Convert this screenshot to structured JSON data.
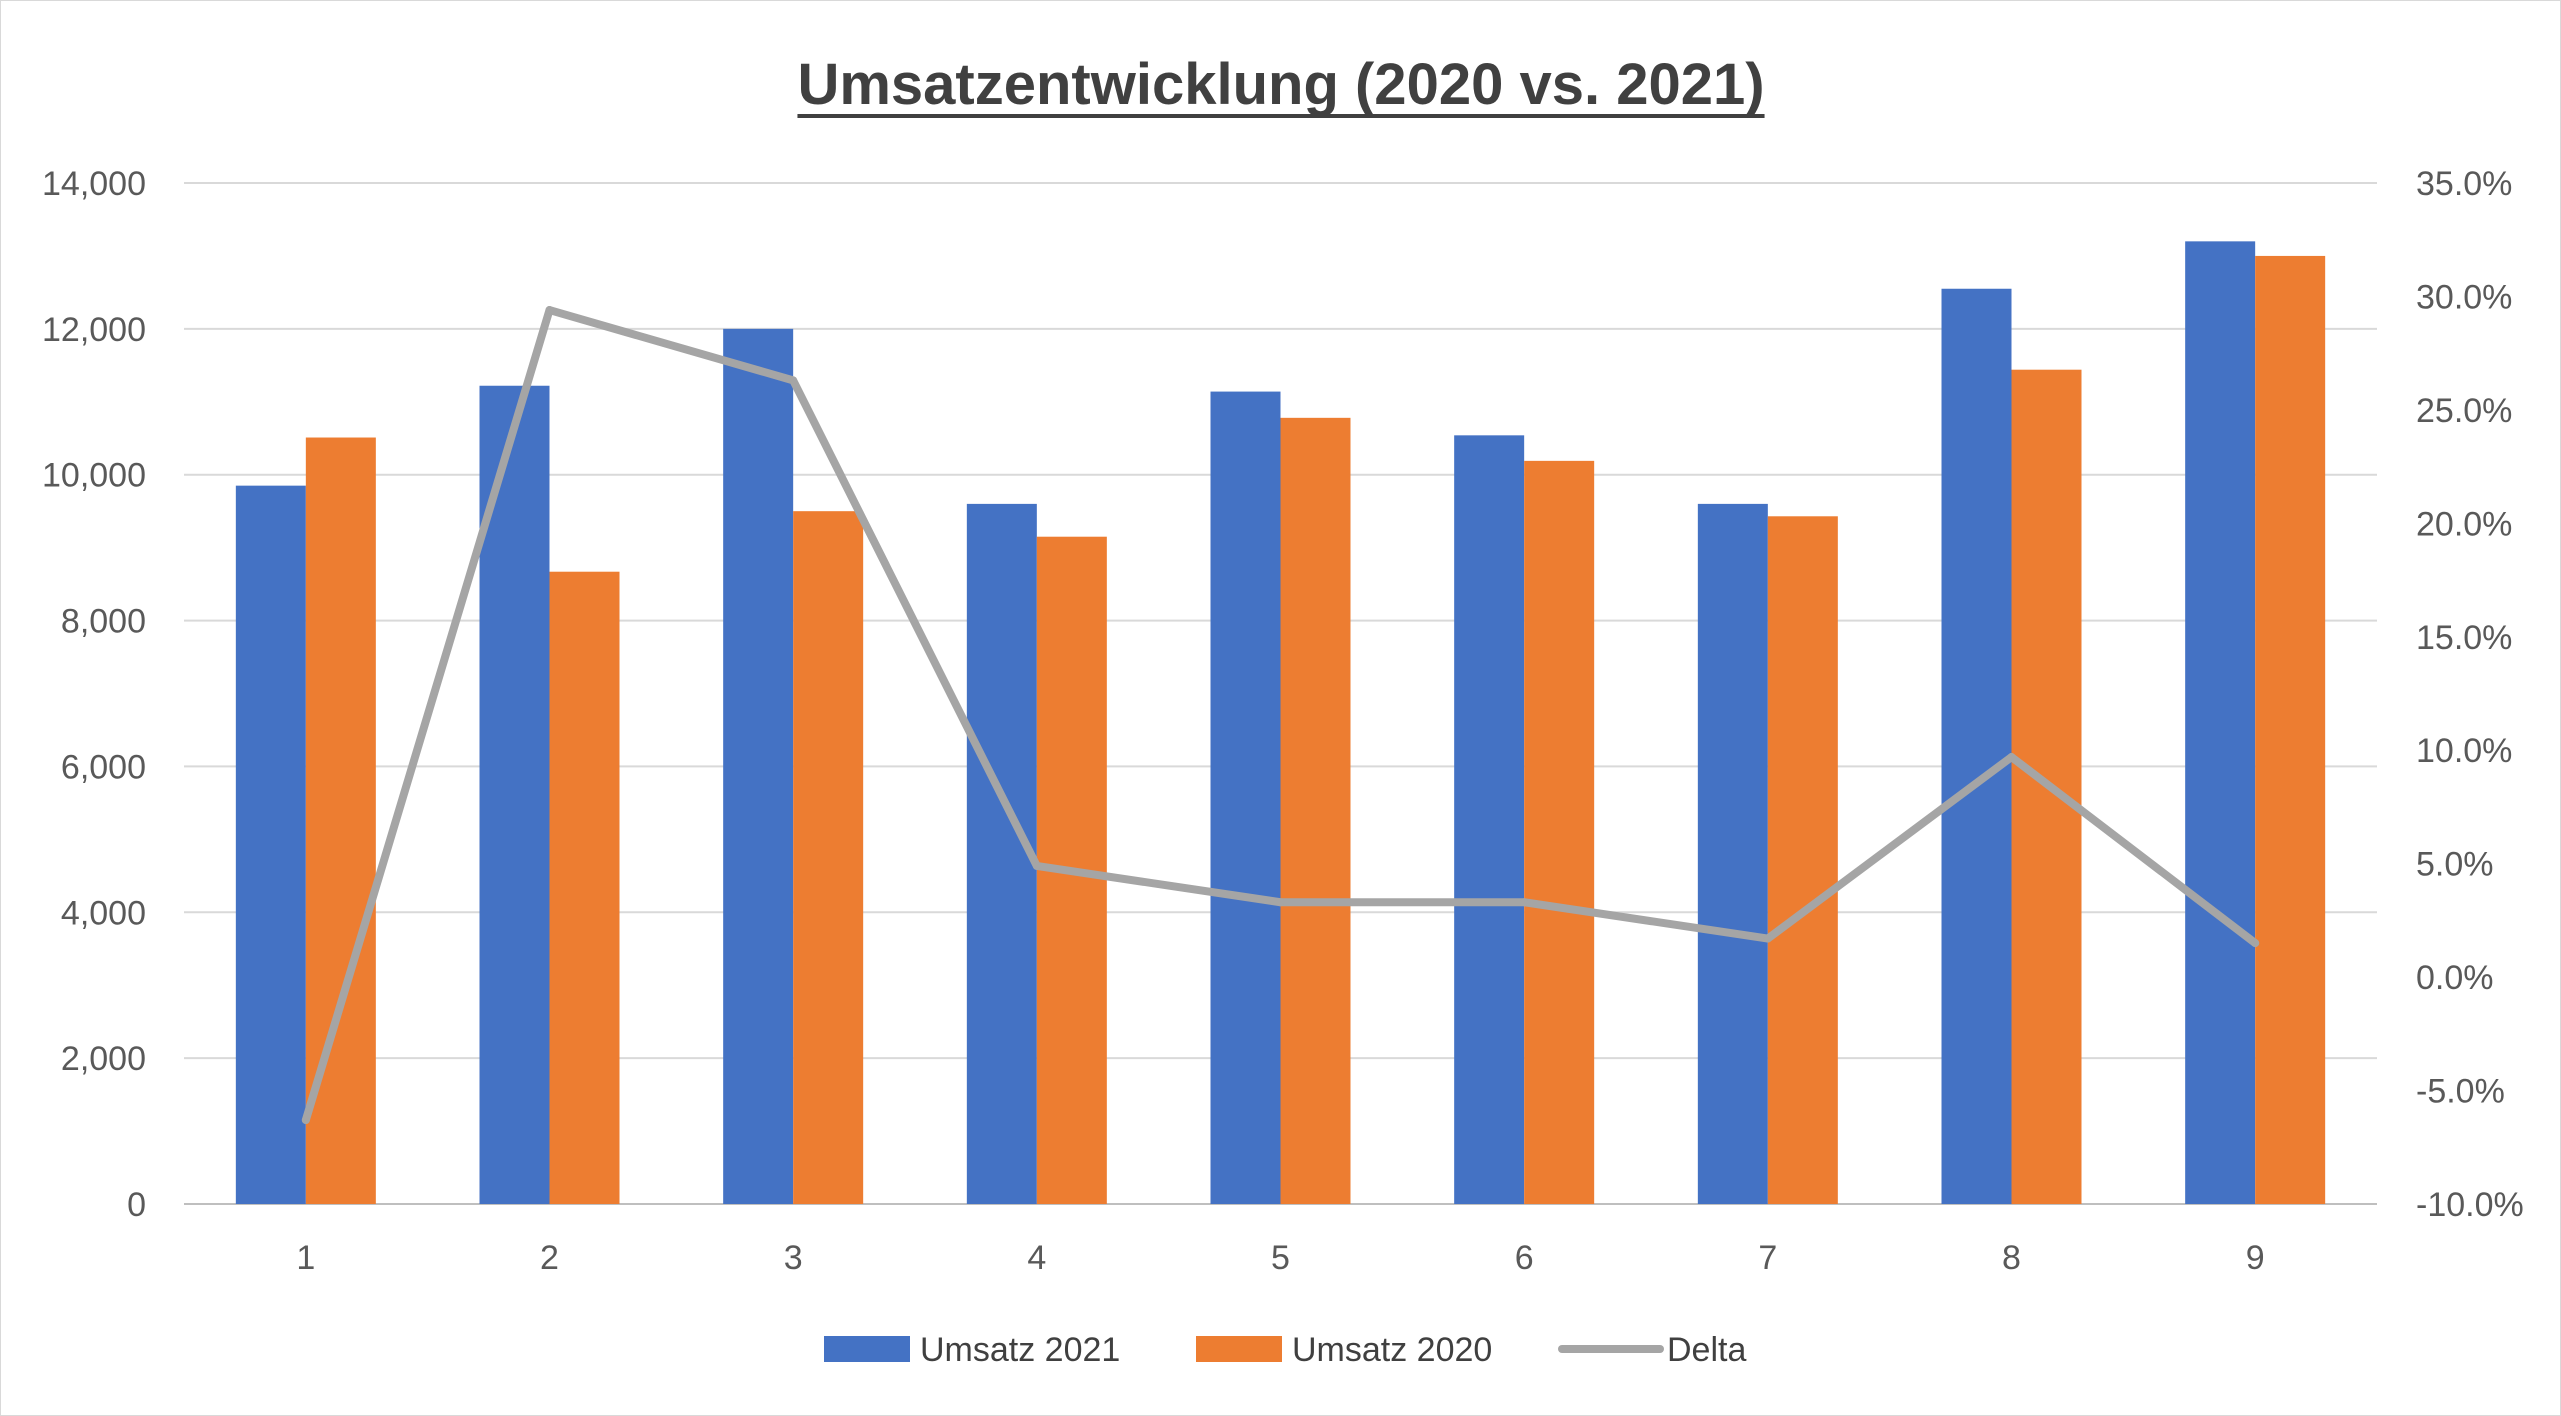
{
  "chart_data": {
    "type": "bar",
    "title": "Umsatzentwicklung (2020 vs. 2021)",
    "categories": [
      "1",
      "2",
      "3",
      "4",
      "5",
      "6",
      "7",
      "8",
      "9"
    ],
    "series": [
      {
        "name": "Umsatz 2021",
        "type": "bar",
        "axis": "left",
        "color": "#4472C4",
        "values": [
          9850,
          11220,
          12000,
          9600,
          11140,
          10540,
          9600,
          12550,
          13200
        ]
      },
      {
        "name": "Umsatz 2020",
        "type": "bar",
        "axis": "left",
        "color": "#ED7D31",
        "values": [
          10510,
          8670,
          9500,
          9150,
          10780,
          10190,
          9430,
          11440,
          13000
        ]
      },
      {
        "name": "Delta",
        "type": "line",
        "axis": "right",
        "color": "#A5A5A5",
        "values": [
          -6.3,
          29.4,
          26.3,
          4.9,
          3.3,
          3.3,
          1.7,
          9.7,
          1.5
        ]
      }
    ],
    "y_left": {
      "min": 0,
      "max": 14000,
      "step": 2000,
      "ticks": [
        "0",
        "2,000",
        "4,000",
        "6,000",
        "8,000",
        "10,000",
        "12,000",
        "14,000"
      ]
    },
    "y_right": {
      "min": -10,
      "max": 35,
      "step": 5,
      "unit": "%",
      "ticks": [
        "-10.0%",
        "-5.0%",
        "0.0%",
        "5.0%",
        "10.0%",
        "15.0%",
        "20.0%",
        "25.0%",
        "30.0%",
        "35.0%"
      ]
    },
    "xlabel": "",
    "ylabel": "",
    "grid": true,
    "legend_position": "bottom"
  }
}
